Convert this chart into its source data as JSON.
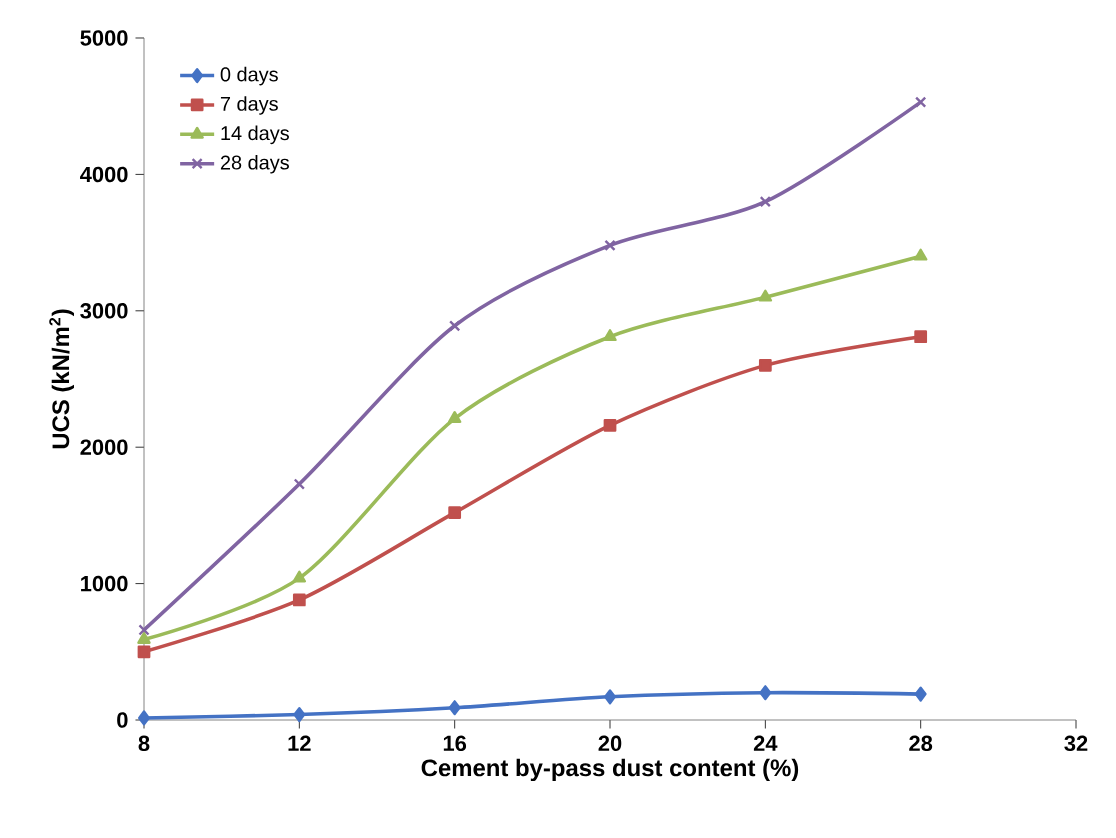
{
  "chart_data": {
    "type": "line",
    "xlabel": "Cement by-pass dust content (%)",
    "ylabel": "UCS (kN/m$^{2}$)",
    "x": [
      8,
      12,
      16,
      20,
      24,
      28
    ],
    "series": [
      {
        "name": "0 days",
        "color": "#4472c4",
        "marker": "diamond",
        "values": [
          15,
          40,
          90,
          170,
          200,
          190
        ]
      },
      {
        "name": "7 days",
        "color": "#c0504d",
        "marker": "square",
        "values": [
          500,
          880,
          1520,
          2160,
          2600,
          2810
        ]
      },
      {
        "name": "14 days",
        "color": "#9bbb59",
        "marker": "triangle",
        "values": [
          590,
          1040,
          2210,
          2810,
          3100,
          3400
        ]
      },
      {
        "name": "28 days",
        "color": "#8064a2",
        "marker": "cross",
        "values": [
          660,
          1730,
          2890,
          3480,
          3800,
          4530
        ]
      }
    ],
    "xlim": [
      8,
      32
    ],
    "xticks": [
      8,
      12,
      16,
      20,
      24,
      28,
      32
    ],
    "ylim": [
      0,
      5000
    ],
    "yticks": [
      0,
      1000,
      2000,
      3000,
      4000,
      5000
    ],
    "grid": false,
    "legend": "top left",
    "line_style": "solid"
  }
}
